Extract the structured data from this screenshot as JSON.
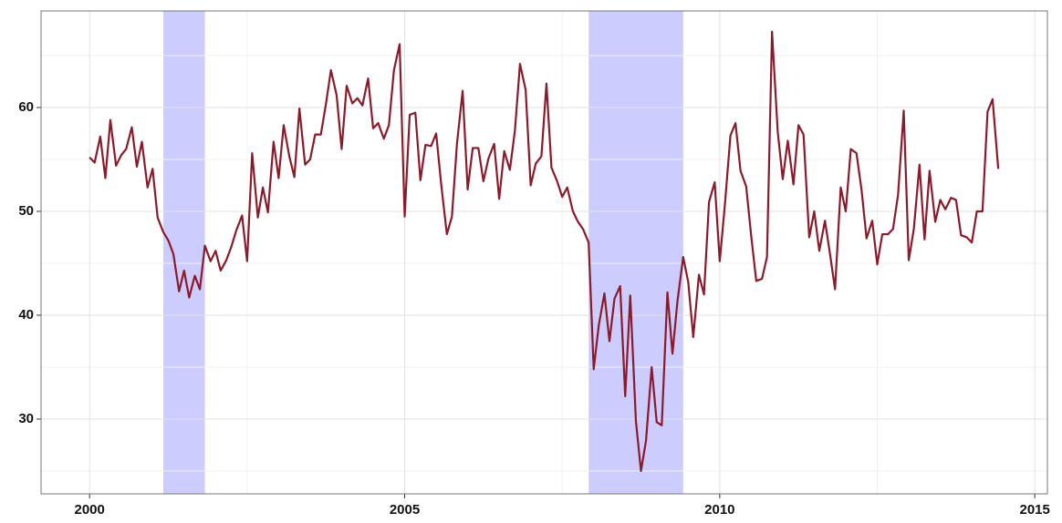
{
  "chart_data": {
    "type": "line",
    "series": [
      {
        "color": "#8b1a2b",
        "x": [
          2000,
          2000.08,
          2000.17,
          2000.25,
          2000.33,
          2000.42,
          2000.5,
          2000.58,
          2000.67,
          2000.75,
          2000.83,
          2000.92,
          2001,
          2001.08,
          2001.17,
          2001.25,
          2001.33,
          2001.42,
          2001.5,
          2001.58,
          2001.67,
          2001.75,
          2001.83,
          2001.92,
          2002,
          2002.08,
          2002.17,
          2002.25,
          2002.33,
          2002.42,
          2002.5,
          2002.58,
          2002.67,
          2002.75,
          2002.83,
          2002.92,
          2003,
          2003.08,
          2003.17,
          2003.25,
          2003.33,
          2003.42,
          2003.5,
          2003.58,
          2003.67,
          2003.75,
          2003.83,
          2003.92,
          2004,
          2004.08,
          2004.17,
          2004.25,
          2004.33,
          2004.42,
          2004.5,
          2004.58,
          2004.67,
          2004.75,
          2004.83,
          2004.92,
          2005,
          2005.08,
          2005.17,
          2005.25,
          2005.33,
          2005.42,
          2005.5,
          2005.58,
          2005.67,
          2005.75,
          2005.83,
          2005.92,
          2006,
          2006.08,
          2006.17,
          2006.25,
          2006.33,
          2006.42,
          2006.5,
          2006.58,
          2006.67,
          2006.75,
          2006.83,
          2006.92,
          2007,
          2007.08,
          2007.17,
          2007.25,
          2007.33,
          2007.42,
          2007.5,
          2007.58,
          2007.67,
          2007.75,
          2007.83,
          2007.92,
          2008,
          2008.08,
          2008.17,
          2008.25,
          2008.33,
          2008.42,
          2008.5,
          2008.58,
          2008.67,
          2008.75,
          2008.83,
          2008.92,
          2009,
          2009.08,
          2009.17,
          2009.25,
          2009.33,
          2009.42,
          2009.5,
          2009.58,
          2009.67,
          2009.75,
          2009.83,
          2009.92,
          2010,
          2010.08,
          2010.17,
          2010.25,
          2010.33,
          2010.42,
          2010.5,
          2010.58,
          2010.67,
          2010.75,
          2010.83,
          2010.92,
          2011,
          2011.08,
          2011.17,
          2011.25,
          2011.33,
          2011.42,
          2011.5,
          2011.58,
          2011.67,
          2011.75,
          2011.83,
          2011.92,
          2012,
          2012.08,
          2012.17,
          2012.25,
          2012.33,
          2012.42,
          2012.5,
          2012.58,
          2012.67,
          2012.75,
          2012.83,
          2012.92,
          2013,
          2013.08,
          2013.17,
          2013.25,
          2013.33,
          2013.42,
          2013.5,
          2013.58,
          2013.67,
          2013.75,
          2013.83,
          2013.92,
          2014,
          2014.08,
          2014.17,
          2014.25,
          2014.33,
          2014.42
        ],
        "values": [
          55.2,
          54.7,
          57.2,
          53.2,
          58.8,
          54.4,
          55.4,
          56.0,
          58.1,
          54.3,
          56.7,
          52.3,
          54.1,
          49.4,
          48.0,
          47.2,
          45.9,
          42.3,
          44.3,
          41.7,
          43.8,
          42.5,
          46.7,
          45.2,
          46.2,
          44.3,
          45.3,
          46.6,
          48.2,
          49.6,
          45.2,
          55.6,
          49.4,
          52.3,
          49.9,
          56.7,
          53.2,
          58.3,
          55.3,
          53.3,
          59.9,
          54.5,
          55.0,
          57.4,
          57.4,
          60.3,
          63.6,
          61.2,
          56.0,
          62.1,
          60.4,
          60.9,
          60.2,
          62.8,
          58.0,
          58.5,
          57.0,
          58.3,
          63.6,
          66.1,
          49.5,
          59.3,
          59.5,
          53.0,
          56.4,
          56.3,
          57.5,
          52.6,
          47.8,
          49.5,
          56.5,
          61.6,
          52.1,
          56.1,
          56.1,
          52.9,
          55.1,
          56.5,
          51.2,
          55.8,
          54.0,
          57.8,
          64.2,
          61.7,
          52.5,
          54.6,
          55.3,
          62.3,
          54.2,
          52.9,
          51.4,
          52.3,
          50.0,
          49.0,
          48.3,
          47.0,
          34.8,
          39.0,
          42.1,
          37.5,
          41.6,
          42.8,
          32.2,
          41.9,
          29.8,
          25.0,
          27.9,
          35.0,
          29.7,
          29.4,
          42.2,
          36.3,
          41.4,
          45.6,
          43.2,
          37.9,
          43.9,
          42.0,
          50.9,
          52.8,
          45.2,
          50.5,
          57.3,
          58.5,
          53.9,
          52.4,
          47.6,
          43.3,
          43.5,
          45.6,
          67.3,
          57.7,
          53.1,
          56.8,
          52.6,
          58.3,
          57.4,
          47.5,
          50.0,
          46.2,
          49.1,
          45.9,
          42.5,
          52.3,
          50.0,
          56.0,
          55.6,
          52.1,
          47.4,
          49.1,
          44.9,
          47.8,
          47.8,
          48.3,
          51.6,
          59.7,
          45.3,
          48.3,
          54.5,
          47.3,
          53.9,
          49.0,
          51.1,
          50.2,
          51.3,
          51.1,
          47.7,
          47.5,
          47.0,
          50.0,
          50.0,
          59.6,
          60.8,
          54.1
        ]
      }
    ],
    "shaded_regions": [
      [
        2001.17,
        2001.83
      ],
      [
        2007.92,
        2009.42
      ]
    ],
    "shaded_color": "#ccccff",
    "xlim": [
      1999.23,
      2015.2
    ],
    "ylim": [
      22.8,
      69.3
    ],
    "xticks": [
      2000,
      2005,
      2010,
      2015
    ],
    "yticks": [
      30,
      40,
      50,
      60
    ],
    "x_minor_ticks": [
      2002.5,
      2007.5,
      2012.5
    ],
    "y_minor_ticks": [
      25,
      35,
      45,
      55,
      65
    ],
    "grid": true
  }
}
